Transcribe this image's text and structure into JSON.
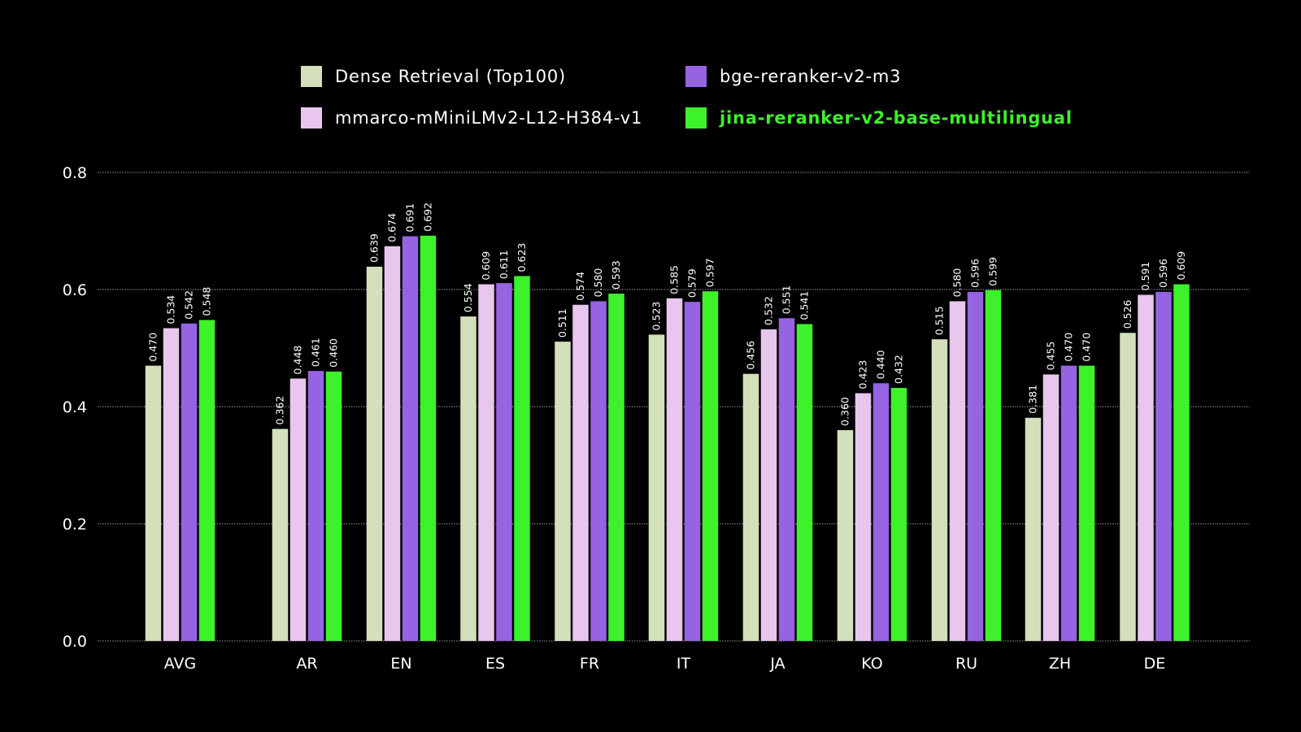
{
  "colors": {
    "background": "#000000",
    "dense": "#d4e0bb",
    "mmarco": "#e8c6ee",
    "bge": "#9663e2",
    "jina": "#3df22a",
    "grid": "#9a9a9a"
  },
  "chart_data": {
    "type": "bar",
    "title": "",
    "xlabel": "",
    "ylabel": "",
    "ylim": [
      0,
      0.8
    ],
    "yticks": [
      "0.0",
      "0.2",
      "0.4",
      "0.6",
      "0.8"
    ],
    "grid": true,
    "legend_position": "top",
    "categories": [
      "AVG",
      "AR",
      "EN",
      "ES",
      "FR",
      "IT",
      "JA",
      "KO",
      "RU",
      "ZH",
      "DE"
    ],
    "series": [
      {
        "name": "Dense Retrieval (Top100)",
        "color": "#d4e0bb",
        "values": [
          0.47,
          0.362,
          0.639,
          0.554,
          0.511,
          0.523,
          0.456,
          0.36,
          0.515,
          0.381,
          0.526
        ],
        "labels": [
          "0.470",
          "0.362",
          "0.639",
          "0.554",
          "0.511",
          "0.523",
          "0.456",
          "0.360",
          "0.515",
          "0.381",
          "0.526"
        ]
      },
      {
        "name": "mmarco-mMiniLMv2-L12-H384-v1",
        "color": "#e8c6ee",
        "values": [
          0.534,
          0.448,
          0.674,
          0.609,
          0.574,
          0.585,
          0.532,
          0.423,
          0.58,
          0.455,
          0.591
        ],
        "labels": [
          "0.534",
          "0.448",
          "0.674",
          "0.609",
          "0.574",
          "0.585",
          "0.532",
          "0.423",
          "0.580",
          "0.455",
          "0.591"
        ]
      },
      {
        "name": "bge-reranker-v2-m3",
        "color": "#9663e2",
        "values": [
          0.542,
          0.461,
          0.691,
          0.611,
          0.58,
          0.579,
          0.551,
          0.44,
          0.596,
          0.47,
          0.596
        ],
        "labels": [
          "0.542",
          "0.461",
          "0.691",
          "0.611",
          "0.580",
          "0.579",
          "0.551",
          "0.440",
          "0.596",
          "0.470",
          "0.596"
        ]
      },
      {
        "name": "jina-reranker-v2-base-multilingual",
        "color": "#3df22a",
        "values": [
          0.548,
          0.46,
          0.692,
          0.623,
          0.593,
          0.597,
          0.541,
          0.432,
          0.599,
          0.47,
          0.609
        ],
        "labels": [
          "0.548",
          "0.460",
          "0.692",
          "0.623",
          "0.593",
          "0.597",
          "0.541",
          "0.432",
          "0.599",
          "0.470",
          "0.609"
        ]
      }
    ]
  }
}
